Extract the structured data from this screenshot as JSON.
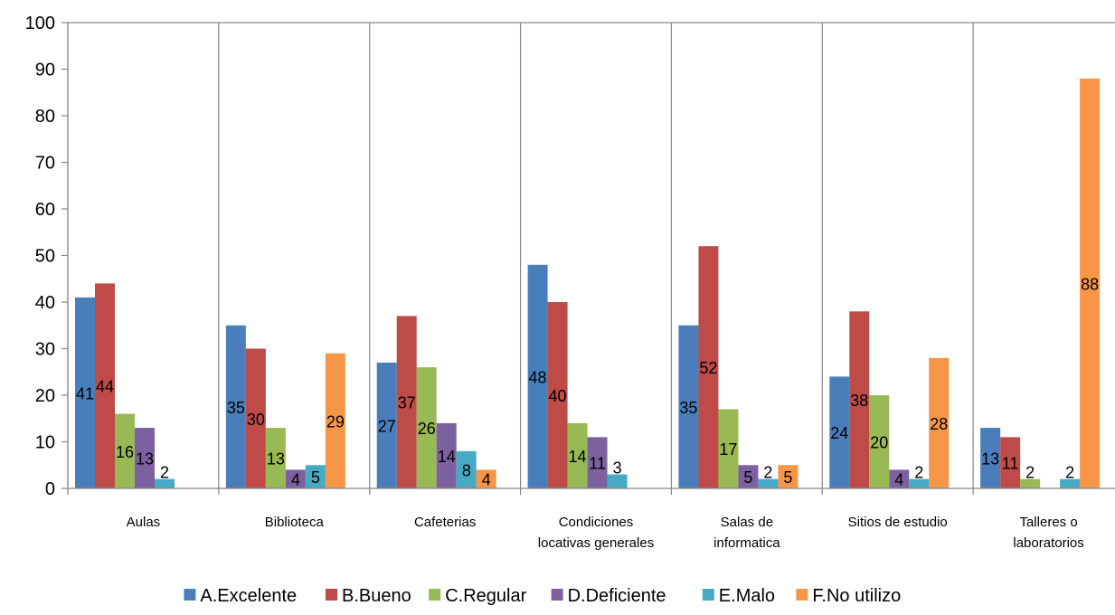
{
  "chart_data": {
    "type": "bar",
    "categories": [
      [
        "Aulas"
      ],
      [
        "Biblioteca"
      ],
      [
        "Cafeterias"
      ],
      [
        "Condiciones",
        "locativas generales"
      ],
      [
        "Salas de",
        "informatica"
      ],
      [
        "Sitios de estudio"
      ],
      [
        "Talleres o",
        "laboratorios"
      ]
    ],
    "series": [
      {
        "name": "A.Excelente",
        "color": "#4a7ebb",
        "values": [
          41,
          35,
          27,
          48,
          35,
          24,
          13
        ]
      },
      {
        "name": "B.Bueno",
        "color": "#be4b48",
        "values": [
          44,
          30,
          37,
          40,
          52,
          38,
          11
        ]
      },
      {
        "name": "C.Regular",
        "color": "#98b954",
        "values": [
          16,
          13,
          26,
          14,
          17,
          20,
          2
        ]
      },
      {
        "name": "D.Deficiente",
        "color": "#7d60a0",
        "values": [
          13,
          4,
          14,
          11,
          5,
          4,
          0
        ]
      },
      {
        "name": "E.Malo",
        "color": "#46aac5",
        "values": [
          2,
          5,
          8,
          3,
          2,
          2,
          2
        ]
      },
      {
        "name": "F.No utilizo",
        "color": "#f79646",
        "values": [
          0,
          29,
          4,
          0,
          5,
          28,
          88
        ]
      }
    ],
    "data_labels": [
      [
        "41",
        "35",
        "27",
        "48",
        "35",
        "24",
        "13"
      ],
      [
        "44",
        "30",
        "37",
        "40",
        "52",
        "38",
        "11"
      ],
      [
        "16",
        "13",
        "26",
        "14",
        "17",
        "20",
        "2"
      ],
      [
        "13",
        "4",
        "14",
        "11",
        "5",
        "4",
        ""
      ],
      [
        "2",
        "5",
        "8",
        "3",
        "2",
        "2",
        "2"
      ],
      [
        "",
        "29",
        "4",
        "",
        "5",
        "28",
        "88"
      ]
    ],
    "title": "",
    "xlabel": "",
    "ylabel": "",
    "ylim": [
      0,
      100
    ],
    "yticks": [
      "0",
      "10",
      "20",
      "30",
      "40",
      "50",
      "60",
      "70",
      "80",
      "90",
      "100"
    ],
    "grid": "vertical category separators",
    "legend_position": "bottom"
  }
}
